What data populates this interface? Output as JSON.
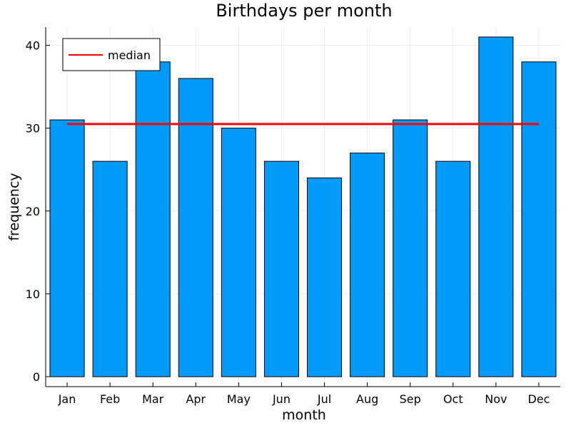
{
  "chart_data": {
    "type": "bar",
    "title": "Birthdays per month",
    "xlabel": "month",
    "ylabel": "frequency",
    "categories": [
      "Jan",
      "Feb",
      "Mar",
      "Apr",
      "May",
      "Jun",
      "Jul",
      "Aug",
      "Sep",
      "Oct",
      "Nov",
      "Dec"
    ],
    "values": [
      31,
      26,
      38,
      36,
      30,
      26,
      24,
      27,
      31,
      26,
      41,
      38
    ],
    "ylim": [
      -1.2,
      42.2
    ],
    "yticks": [
      0,
      10,
      20,
      30,
      40
    ],
    "grid": true,
    "bar_color": "#009af9",
    "median": {
      "name": "median",
      "value": 30.5,
      "color": "#ff0000"
    },
    "legend": {
      "placement": "top-left",
      "entries": [
        "median"
      ]
    }
  }
}
